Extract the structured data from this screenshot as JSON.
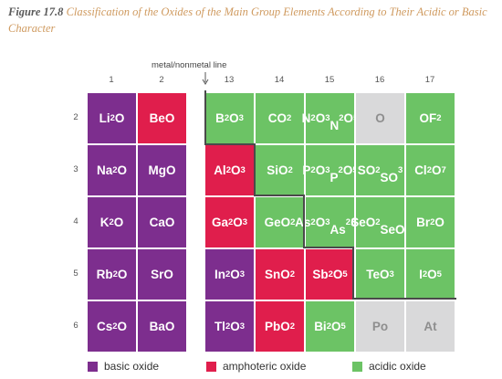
{
  "caption": {
    "figure": "Figure 17.8",
    "text": " Classification of the Oxides of the Main Group Elements According to Their Acidic or Basic Character"
  },
  "metal_nonmetal_label": "metal/nonmetal line",
  "groups": [
    "1",
    "2",
    "13",
    "14",
    "15",
    "16",
    "17"
  ],
  "periods": [
    "2",
    "3",
    "4",
    "5",
    "6"
  ],
  "colors": {
    "basic": "#7d2e8e",
    "amphoteric": "#e01e4c",
    "acidic": "#6cc365",
    "unclassified": "#d9d9da"
  },
  "rows": [
    [
      {
        "html": "Li<sub>2</sub>O",
        "type": "basic"
      },
      {
        "html": "BeO",
        "type": "amph"
      },
      {
        "html": "B<sub>2</sub>O<sub>3</sub>",
        "type": "acid"
      },
      {
        "html": "CO<sub>2</sub>",
        "type": "acid"
      },
      {
        "html": "N<sub>2</sub>O<sub>3</sub><br>N<sub>2</sub>O<sub>5</sub>",
        "type": "acid"
      },
      {
        "html": "O",
        "type": "gray"
      },
      {
        "html": "OF<sub>2</sub>",
        "type": "acid"
      }
    ],
    [
      {
        "html": "Na<sub>2</sub>O",
        "type": "basic"
      },
      {
        "html": "MgO",
        "type": "basic"
      },
      {
        "html": "Al<sub>2</sub>O<sub>3</sub>",
        "type": "amph"
      },
      {
        "html": "SiO<sub>2</sub>",
        "type": "acid"
      },
      {
        "html": "P<sub>2</sub>O<sub>3</sub><br>P<sub>2</sub>O<sub>5</sub>",
        "type": "acid"
      },
      {
        "html": "SO<sub>2</sub><br>SO<sub>3</sub>",
        "type": "acid"
      },
      {
        "html": "Cl<sub>2</sub>O<sub>7</sub>",
        "type": "acid"
      }
    ],
    [
      {
        "html": "K<sub>2</sub>O",
        "type": "basic"
      },
      {
        "html": "CaO",
        "type": "basic"
      },
      {
        "html": "Ga<sub>2</sub>O<sub>3</sub>",
        "type": "amph"
      },
      {
        "html": "GeO<sub>2</sub>",
        "type": "acid"
      },
      {
        "html": "As<sub>2</sub>O<sub>3</sub><br>As<sub>2</sub>O<sub>5</sub>",
        "type": "acid"
      },
      {
        "html": "SeO<sub>2</sub><br>SeO<sub>3</sub>",
        "type": "acid"
      },
      {
        "html": "Br<sub>2</sub>O",
        "type": "acid"
      }
    ],
    [
      {
        "html": "Rb<sub>2</sub>O",
        "type": "basic"
      },
      {
        "html": "SrO",
        "type": "basic"
      },
      {
        "html": "In<sub>2</sub>O<sub>3</sub>",
        "type": "basic"
      },
      {
        "html": "SnO<sub>2</sub>",
        "type": "amph"
      },
      {
        "html": "Sb<sub>2</sub>O<sub>5</sub>",
        "type": "amph"
      },
      {
        "html": "TeO<sub>3</sub>",
        "type": "acid"
      },
      {
        "html": "I<sub>2</sub>O<sub>5</sub>",
        "type": "acid"
      }
    ],
    [
      {
        "html": "Cs<sub>2</sub>O",
        "type": "basic"
      },
      {
        "html": "BaO",
        "type": "basic"
      },
      {
        "html": "Tl<sub>2</sub>O<sub>3</sub>",
        "type": "basic"
      },
      {
        "html": "PbO<sub>2</sub>",
        "type": "amph"
      },
      {
        "html": "Bi<sub>2</sub>O<sub>5</sub>",
        "type": "acid"
      },
      {
        "html": "Po",
        "type": "gray"
      },
      {
        "html": "At",
        "type": "gray"
      }
    ]
  ],
  "legend": [
    {
      "label": "basic oxide",
      "type": "basic"
    },
    {
      "label": "amphoteric oxide",
      "type": "amph"
    },
    {
      "label": "acidic oxide",
      "type": "acid"
    }
  ]
}
